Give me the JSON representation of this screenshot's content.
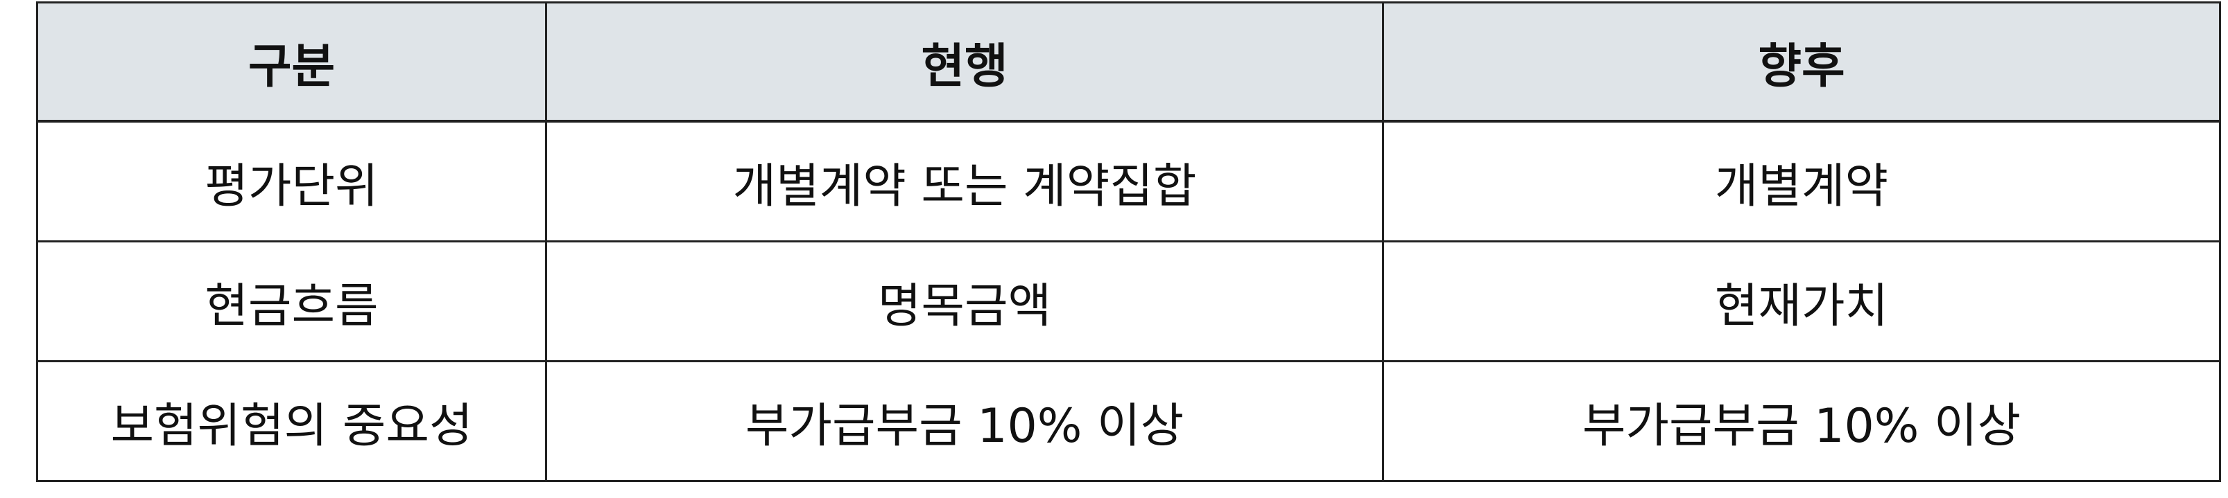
{
  "table": {
    "headers": [
      "구분",
      "현행",
      "향후"
    ],
    "rows": [
      [
        "평가단위",
        "개별계약 또는 계약집합",
        "개별계약"
      ],
      [
        "현금흐름",
        "명목금액",
        "현재가치"
      ],
      [
        "보험위험의 중요성",
        "부가급부금 10% 이상",
        "부가급부금 10% 이상"
      ]
    ]
  },
  "colors": {
    "header_background": "#dfe4e8",
    "border": "#222222",
    "text": "#111111"
  }
}
